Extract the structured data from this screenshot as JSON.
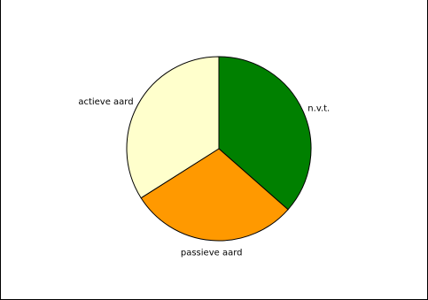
{
  "chart_data": {
    "type": "pie",
    "title": "",
    "start_angle_deg": 0,
    "direction": "clockwise",
    "slices": [
      {
        "label": "n.v.t.",
        "value": 36.5,
        "color": "#008000"
      },
      {
        "label": "passieve aard",
        "value": 29.5,
        "color": "#ff9900"
      },
      {
        "label": "actieve aard",
        "value": 34.0,
        "color": "#ffffcc"
      }
    ],
    "slice_outline_color": "#000000",
    "legend": "none"
  }
}
